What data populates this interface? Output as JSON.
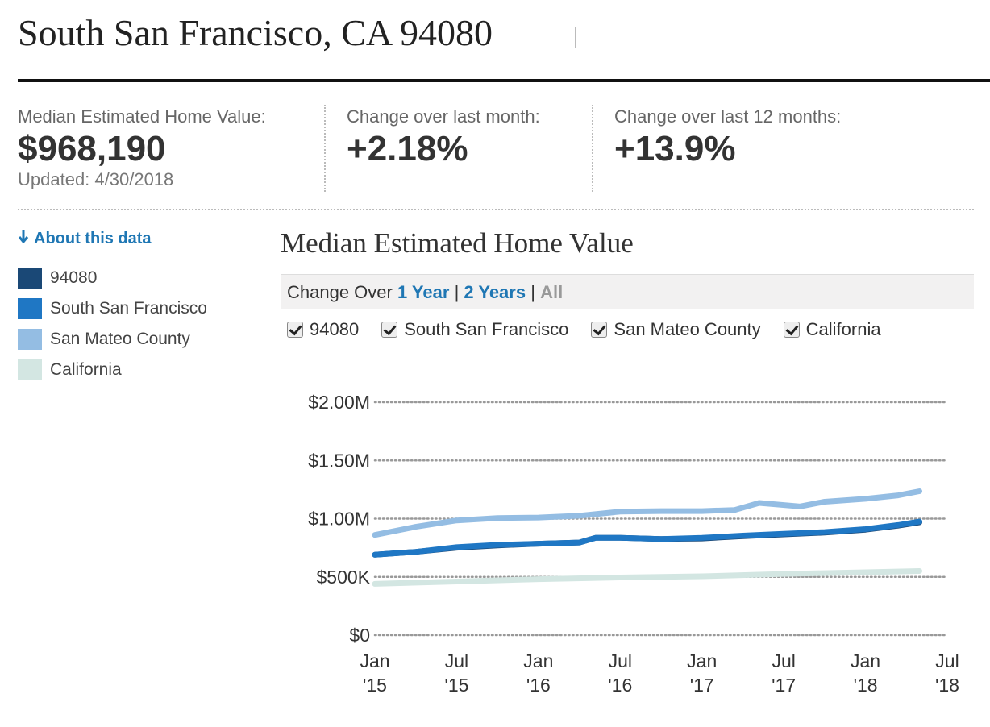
{
  "header": {
    "title": "South San Francisco, CA 94080"
  },
  "stats": [
    {
      "label": "Median Estimated Home Value:",
      "value": "$968,190",
      "updated": "Updated: 4/30/2018"
    },
    {
      "label": "Change over last month:",
      "value": "+2.18%"
    },
    {
      "label": "Change over last 12 months:",
      "value": "+13.9%"
    }
  ],
  "sidebar": {
    "about_label": "About this data",
    "legend": [
      {
        "label": "94080",
        "color": "#1a4876"
      },
      {
        "label": "South San Francisco",
        "color": "#1f77c4"
      },
      {
        "label": "San Mateo County",
        "color": "#94bde3"
      },
      {
        "label": "California",
        "color": "#d3e6e2"
      }
    ]
  },
  "controls": {
    "change_over_label": "Change Over",
    "options": [
      "1 Year",
      "2 Years",
      "All"
    ],
    "checkboxes": [
      "94080",
      "South San Francisco",
      "San Mateo County",
      "California"
    ]
  },
  "chart_data": {
    "type": "line",
    "title": "Median Estimated Home Value",
    "y_ticks": [
      "$2.00M",
      "$1.50M",
      "$1.00M",
      "$500K",
      "$0"
    ],
    "y_tick_values": [
      2000000,
      1500000,
      1000000,
      500000,
      0
    ],
    "ylim": [
      0,
      2000000
    ],
    "x_ticks": [
      {
        "line1": "Jan",
        "line2": "'15",
        "t": 2015.0
      },
      {
        "line1": "Jul",
        "line2": "'15",
        "t": 2015.5
      },
      {
        "line1": "Jan",
        "line2": "'16",
        "t": 2016.0
      },
      {
        "line1": "Jul",
        "line2": "'16",
        "t": 2016.5
      },
      {
        "line1": "Jan",
        "line2": "'17",
        "t": 2017.0
      },
      {
        "line1": "Jul",
        "line2": "'17",
        "t": 2017.5
      },
      {
        "line1": "Jan",
        "line2": "'18",
        "t": 2018.0
      },
      {
        "line1": "Jul",
        "line2": "'18",
        "t": 2018.5
      }
    ],
    "xlim": [
      2015.0,
      2018.5
    ],
    "grid": true,
    "series": [
      {
        "name": "California",
        "color": "#d3e6e2",
        "x": [
          2015.0,
          2015.5,
          2016.0,
          2016.5,
          2017.0,
          2017.5,
          2018.0,
          2018.33
        ],
        "y": [
          440000,
          460000,
          480000,
          495000,
          505000,
          525000,
          540000,
          550000
        ]
      },
      {
        "name": "San Mateo County",
        "color": "#94bde3",
        "x": [
          2015.0,
          2015.25,
          2015.5,
          2015.75,
          2016.0,
          2016.25,
          2016.5,
          2016.75,
          2017.0,
          2017.2,
          2017.35,
          2017.6,
          2017.75,
          2018.0,
          2018.2,
          2018.33
        ],
        "y": [
          860000,
          930000,
          985000,
          1005000,
          1010000,
          1025000,
          1060000,
          1065000,
          1065000,
          1075000,
          1135000,
          1105000,
          1145000,
          1170000,
          1200000,
          1235000
        ]
      },
      {
        "name": "94080",
        "color": "#1a4876",
        "x": [
          2015.0,
          2015.25,
          2015.5,
          2015.75,
          2016.0,
          2016.25,
          2016.35,
          2016.5,
          2016.75,
          2017.0,
          2017.25,
          2017.5,
          2017.75,
          2018.0,
          2018.2,
          2018.33
        ],
        "y": [
          690000,
          715000,
          750000,
          770000,
          785000,
          795000,
          835000,
          835000,
          825000,
          830000,
          850000,
          865000,
          880000,
          905000,
          940000,
          968000
        ]
      },
      {
        "name": "South San Francisco",
        "color": "#1f77c4",
        "x": [
          2015.0,
          2015.25,
          2015.5,
          2015.75,
          2016.0,
          2016.25,
          2016.35,
          2016.5,
          2016.75,
          2017.0,
          2017.25,
          2017.5,
          2017.75,
          2018.0,
          2018.2,
          2018.33
        ],
        "y": [
          690000,
          715000,
          755000,
          775000,
          785000,
          795000,
          835000,
          835000,
          825000,
          835000,
          855000,
          870000,
          885000,
          910000,
          945000,
          975000
        ]
      }
    ]
  }
}
